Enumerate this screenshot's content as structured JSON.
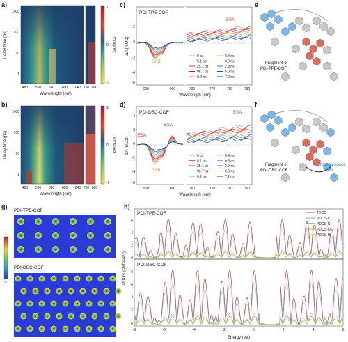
{
  "panel_labels": {
    "a": "a)",
    "b": "b)",
    "c": "c)",
    "d": "d)",
    "e": "e",
    "f": "f",
    "g": "g)",
    "h": "h)"
  },
  "panel_a": {
    "ylabel": "Delay time (ps)",
    "xlabel": "Wavelength (nm)",
    "yticks": [
      "1000",
      "100",
      "10",
      "1"
    ],
    "xticks": [
      "480",
      "520",
      "560",
      "600",
      "640",
      "760",
      "800"
    ],
    "cbar_title": "ΔA (mOD)",
    "cbar_max": "7",
    "cbar_zero": "0",
    "cbar_min": "-7"
  },
  "panel_b": {
    "ylabel": "Delay time (ps)",
    "xlabel": "Wavelength (nm)",
    "yticks": [
      "1000",
      "100",
      "10",
      "1"
    ],
    "xticks": [
      "480",
      "520",
      "560",
      "600",
      "640",
      "760",
      "800"
    ],
    "cbar_title": "ΔA (mOD)",
    "cbar_max": "9",
    "cbar_zero": "0",
    "cbar_min": "-9"
  },
  "panel_c": {
    "title": "PDI-TPE-COF",
    "ylabel": "ΔA (mOD)",
    "xlabel": "Wavelength (nm)",
    "xticks": [
      "500",
      "600",
      "760",
      "770",
      "780",
      "790"
    ],
    "yticks": [
      "2",
      "0",
      "-2",
      "-4",
      "-6"
    ],
    "esa": "ESA",
    "gsb": "GSB",
    "legend": [
      "0 ps",
      "5.1 ps",
      "25.1 ps",
      "98.7 ps",
      "0.2 ns",
      "0.4 ns",
      "0.8 ns",
      "2.9 ns",
      "5.0 ns",
      "7.2 ns"
    ]
  },
  "panel_d": {
    "title": "PDI-DBC-COF",
    "ylabel": "ΔA (mOD)",
    "xlabel": "Wavelength (nm)",
    "xticks": [
      "500",
      "600",
      "760",
      "770",
      "780",
      "790"
    ],
    "yticks": [
      "4",
      "2",
      "0",
      "-2",
      "-4",
      "-6"
    ],
    "esa_left": "ESA",
    "esa_mid": "ESA",
    "esa_right": "ESA",
    "gsb": "GSB",
    "legend": [
      "0 ps",
      "5.1 ps",
      "25.1 ps",
      "98.7 ps",
      "0.2 ns",
      "0.4 ns",
      "0.8 ns",
      "2.9 ns",
      "5.0 ns",
      "7.2 ns"
    ]
  },
  "panel_e": {
    "caption_line1": "Fragment of",
    "caption_line2": "PDI-TPE-COF"
  },
  "panel_f": {
    "caption_line1": "Fragment of",
    "caption_line2": "PDI-DBC-COF",
    "through1": "Through-space",
    "through2": "EnT"
  },
  "panel_g": {
    "top": "PDI-TPE-COF",
    "bottom": "PDI-DBC-COF",
    "scale_max": "1",
    "scale_min": "0"
  },
  "panel_h": {
    "top_title": "PDI-TPE-COF",
    "bottom_title": "PDI-DBC-COF",
    "ylabel": "PDOS (states/eV)",
    "xlabel": "Energy (eV)",
    "xticks": [
      "-8",
      "-6",
      "-4",
      "-2",
      "0",
      "2",
      "4",
      "6"
    ],
    "top_yticks": [
      "6",
      "4",
      "2",
      "0"
    ],
    "bottom_yticks": [
      "8",
      "6",
      "4",
      "2",
      "0"
    ],
    "legend": [
      "TDOS",
      "PDOS-C",
      "PDOS-N",
      "PDOS-O",
      "PDOS-H"
    ],
    "legend_colors": [
      "#c0392b",
      "#6bb3e0",
      "#2e8b57",
      "#e8a13a",
      "#c8c84a"
    ]
  },
  "colors": {
    "red": "#c0392b",
    "blue": "#2f6fb0",
    "esa": "#d63a2f"
  }
}
